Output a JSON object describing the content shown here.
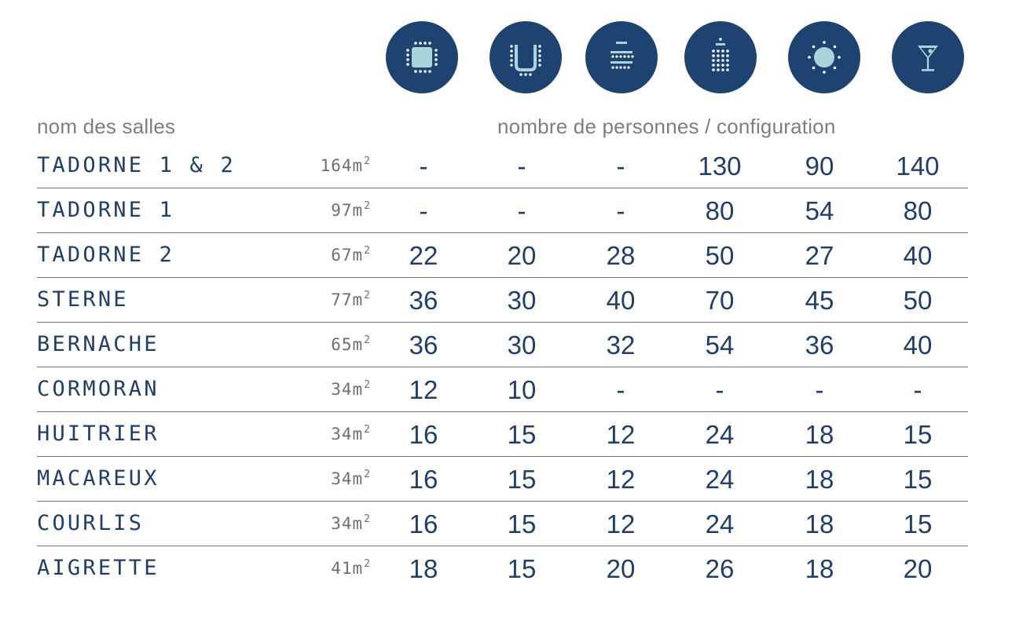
{
  "headers": {
    "left": "nom des salles",
    "right": "nombre de personnes / configuration"
  },
  "icons": [
    {
      "name": "boardroom-icon"
    },
    {
      "name": "u-shape-icon"
    },
    {
      "name": "classroom-icon"
    },
    {
      "name": "theatre-icon"
    },
    {
      "name": "banquet-icon"
    },
    {
      "name": "cocktail-icon"
    }
  ],
  "rooms": [
    {
      "name": "TADORNE 1 & 2",
      "area": "164m",
      "area_unit_exp": "2",
      "values": [
        "-",
        "-",
        "-",
        "130",
        "90",
        "140"
      ]
    },
    {
      "name": "TADORNE 1",
      "area": "97m",
      "area_unit_exp": "2",
      "values": [
        "-",
        "-",
        "-",
        "80",
        "54",
        "80"
      ]
    },
    {
      "name": "TADORNE 2",
      "area": "67m",
      "area_unit_exp": "2",
      "values": [
        "22",
        "20",
        "28",
        "50",
        "27",
        "40"
      ]
    },
    {
      "name": "STERNE",
      "area": "77m",
      "area_unit_exp": "2",
      "values": [
        "36",
        "30",
        "40",
        "70",
        "45",
        "50"
      ]
    },
    {
      "name": "BERNACHE",
      "area": "65m",
      "area_unit_exp": "2",
      "values": [
        "36",
        "30",
        "32",
        "54",
        "36",
        "40"
      ]
    },
    {
      "name": "CORMORAN",
      "area": "34m",
      "area_unit_exp": "2",
      "values": [
        "12",
        "10",
        "-",
        "-",
        "-",
        "-"
      ]
    },
    {
      "name": "HUITRIER",
      "area": "34m",
      "area_unit_exp": "2",
      "values": [
        "16",
        "15",
        "12",
        "24",
        "18",
        "15"
      ]
    },
    {
      "name": "MACAREUX",
      "area": "34m",
      "area_unit_exp": "2",
      "values": [
        "16",
        "15",
        "12",
        "24",
        "18",
        "15"
      ]
    },
    {
      "name": "COURLIS",
      "area": "34m",
      "area_unit_exp": "2",
      "values": [
        "16",
        "15",
        "12",
        "24",
        "18",
        "15"
      ]
    },
    {
      "name": "AIGRETTE",
      "area": "41m",
      "area_unit_exp": "2",
      "values": [
        "18",
        "15",
        "20",
        "26",
        "18",
        "20"
      ]
    }
  ],
  "colors": {
    "navy": "#1f4370",
    "text_navy": "#1f3e6a",
    "icon_light": "#a9d4dc",
    "gray_text": "#7a7f86",
    "divider": "#6c7480"
  }
}
